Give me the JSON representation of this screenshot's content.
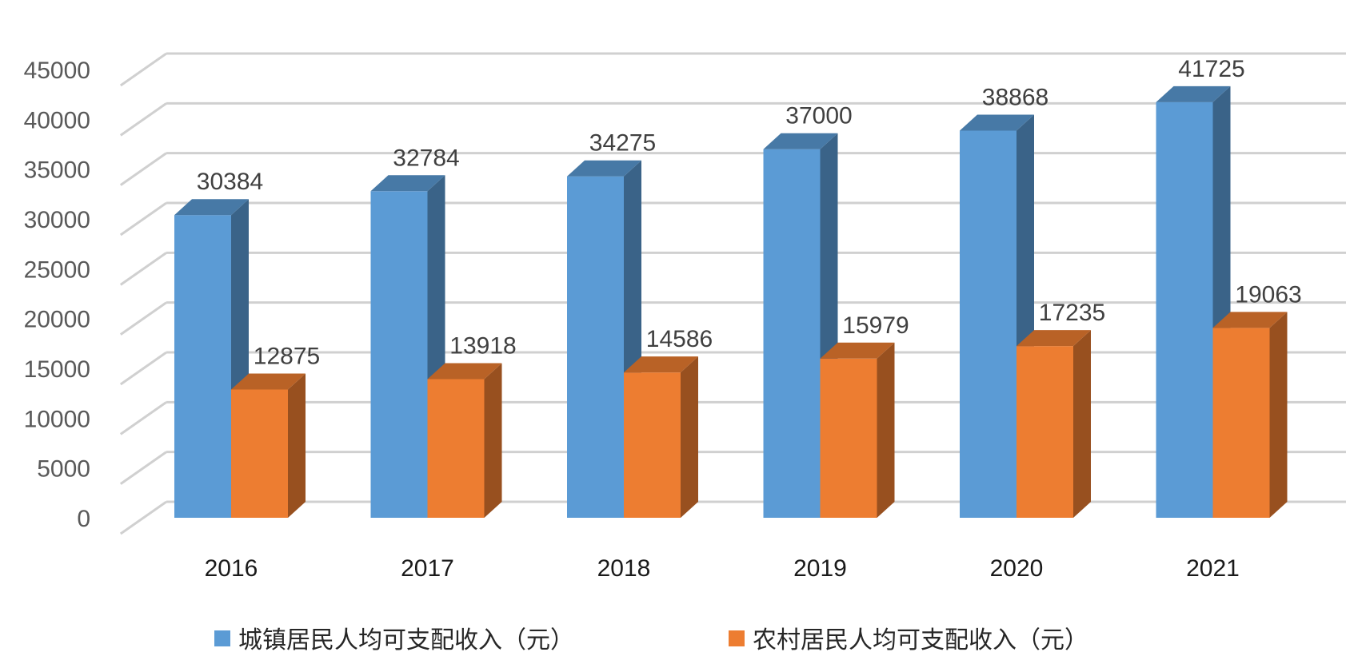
{
  "chart_data": {
    "type": "bar",
    "categories": [
      "2016",
      "2017",
      "2018",
      "2019",
      "2020",
      "2021"
    ],
    "series": [
      {
        "name": "城镇居民人均可支配收入（元）",
        "values": [
          30384,
          32784,
          34275,
          37000,
          38868,
          41725
        ],
        "color": "#5B9BD5"
      },
      {
        "name": "农村居民人均可支配收入（元）",
        "values": [
          12875,
          13918,
          14586,
          15979,
          17235,
          19063
        ],
        "color": "#ED7D31"
      }
    ],
    "yticks": [
      0,
      5000,
      10000,
      15000,
      20000,
      25000,
      30000,
      35000,
      40000,
      45000
    ],
    "ylim": [
      0,
      45000
    ],
    "grid": true,
    "legend": "bottom"
  }
}
